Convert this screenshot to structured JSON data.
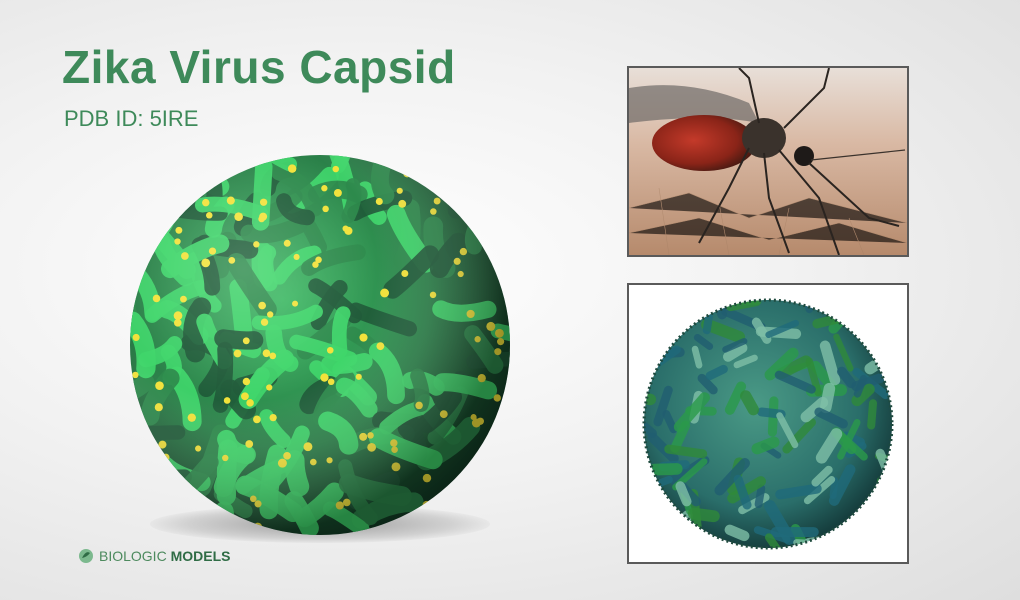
{
  "page": {
    "title": "Zika Virus Capsid",
    "subtitle": "PDB ID: 5IRE"
  },
  "images": {
    "main_render": "zika-capsid-3d-render",
    "mosquito_photo": "mosquito-photo",
    "molecular_model": "capsid-molecular-model"
  },
  "logo": {
    "brand_light": "BIOLOGIC",
    "brand_bold": "MODELS",
    "icon": "leaf-globe-icon"
  },
  "colors": {
    "title": "#3e8a5a",
    "capsid_light": "#3fd66a",
    "capsid_dark": "#1f5a38",
    "capsid_mid": "#2e8a4c",
    "accent_yellow": "#f2e23a"
  }
}
